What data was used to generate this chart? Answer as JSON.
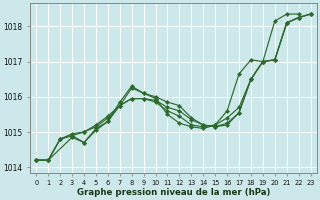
{
  "xlabel": "Graphe pression niveau de la mer (hPa)",
  "background_color": "#cce8ea",
  "grid_color": "#ffffff",
  "line_color": "#2d6a2d",
  "marker_color": "#2d6a2d",
  "ylim": [
    1013.85,
    1018.65
  ],
  "xlim": [
    -0.5,
    23.5
  ],
  "yticks": [
    1014,
    1015,
    1016,
    1017,
    1018
  ],
  "series": [
    {
      "x": [
        0,
        1,
        2,
        3,
        4,
        5,
        6,
        7,
        8,
        9,
        10,
        11,
        12,
        13,
        14,
        15,
        16,
        17,
        18,
        19,
        20,
        21,
        22,
        23
      ],
      "y": [
        1014.2,
        1014.2,
        1014.8,
        1014.9,
        1014.7,
        1015.1,
        1015.3,
        1015.85,
        1016.3,
        1016.1,
        1016.0,
        1015.85,
        1015.75,
        1015.4,
        1015.2,
        1015.15,
        1015.2,
        1015.55,
        1016.5,
        1017.0,
        1017.05,
        1018.1,
        1018.25,
        1018.35
      ]
    },
    {
      "x": [
        0,
        1,
        2,
        3,
        4,
        5,
        6,
        7,
        8,
        9,
        10,
        11,
        12,
        13,
        14,
        15,
        16,
        17,
        18,
        19,
        20,
        21,
        22,
        23
      ],
      "y": [
        1014.2,
        1014.2,
        1014.8,
        1014.9,
        1015.0,
        1015.15,
        1015.4,
        1015.75,
        1015.95,
        1015.95,
        1015.9,
        1015.7,
        1015.6,
        1015.35,
        1015.2,
        1015.15,
        1015.25,
        1015.55,
        1016.5,
        1017.0,
        1017.05,
        1018.1,
        1018.25,
        1018.35
      ]
    },
    {
      "x": [
        0,
        1,
        2,
        3,
        4,
        5,
        6,
        7,
        8,
        9,
        10,
        11,
        12,
        13,
        14,
        15,
        16,
        17,
        18,
        19,
        20,
        21,
        22,
        23
      ],
      "y": [
        1014.2,
        1014.2,
        1014.8,
        1014.95,
        1015.0,
        1015.2,
        1015.45,
        1015.75,
        1015.95,
        1015.95,
        1015.85,
        1015.6,
        1015.45,
        1015.2,
        1015.15,
        1015.2,
        1015.4,
        1015.7,
        1016.5,
        1017.0,
        1017.05,
        1018.1,
        1018.25,
        1018.35
      ]
    },
    {
      "x": [
        0,
        1,
        3,
        4,
        5,
        6,
        7,
        8,
        9,
        10,
        11,
        12,
        13,
        14,
        15,
        16,
        17,
        18,
        19,
        20,
        21,
        22
      ],
      "y": [
        1014.2,
        1014.2,
        1014.85,
        1014.7,
        1015.05,
        1015.3,
        1015.75,
        1016.25,
        1016.1,
        1015.95,
        1015.5,
        1015.25,
        1015.15,
        1015.1,
        1015.2,
        1015.6,
        1016.65,
        1017.05,
        1017.0,
        1018.15,
        1018.35,
        1018.35
      ]
    }
  ]
}
